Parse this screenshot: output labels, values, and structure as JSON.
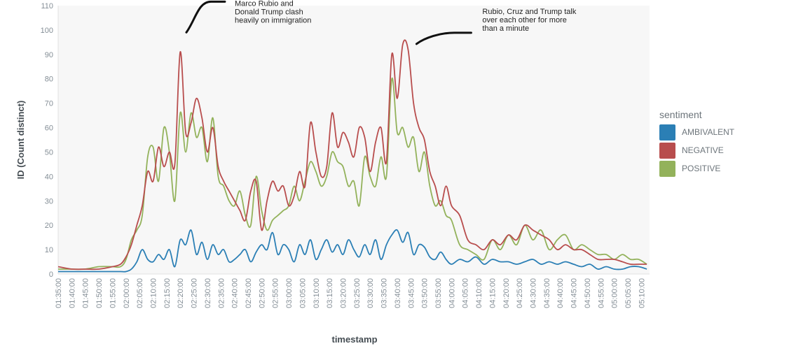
{
  "chart_data": {
    "type": "line",
    "xlabel": "timestamp",
    "ylabel": "ID (Count distinct)",
    "ylim": [
      0,
      110
    ],
    "yticks": [
      0,
      10,
      20,
      30,
      40,
      50,
      60,
      70,
      80,
      90,
      100,
      110
    ],
    "xlim": [
      "01:35:00",
      "05:13:00"
    ],
    "x_tick_labels": [
      "01:35:00",
      "01:40:00",
      "01:45:00",
      "01:50:00",
      "01:55:00",
      "02:00:00",
      "02:05:00",
      "02:10:00",
      "02:15:00",
      "02:20:00",
      "02:25:00",
      "02:30:00",
      "02:35:00",
      "02:40:00",
      "02:45:00",
      "02:50:00",
      "02:55:00",
      "03:00:00",
      "03:05:00",
      "03:10:00",
      "03:15:00",
      "03:20:00",
      "03:25:00",
      "03:30:00",
      "03:35:00",
      "03:40:00",
      "03:45:00",
      "03:50:00",
      "03:55:00",
      "04:00:00",
      "04:05:00",
      "04:10:00",
      "04:15:00",
      "04:20:00",
      "04:25:00",
      "04:30:00",
      "04:35:00",
      "04:40:00",
      "04:45:00",
      "04:50:00",
      "04:55:00",
      "05:00:00",
      "05:05:00",
      "05:10:00"
    ],
    "x": [
      "01:35:00",
      "01:40:00",
      "01:45:00",
      "01:50:00",
      "01:55:00",
      "01:58:00",
      "02:00:00",
      "02:02:00",
      "02:04:00",
      "02:06:00",
      "02:08:00",
      "02:10:00",
      "02:12:00",
      "02:14:00",
      "02:16:00",
      "02:18:00",
      "02:20:00",
      "02:22:00",
      "02:24:00",
      "02:26:00",
      "02:28:00",
      "02:30:00",
      "02:32:00",
      "02:34:00",
      "02:36:00",
      "02:38:00",
      "02:40:00",
      "02:42:00",
      "02:44:00",
      "02:46:00",
      "02:48:00",
      "02:50:00",
      "02:52:00",
      "02:54:00",
      "02:56:00",
      "02:58:00",
      "03:00:00",
      "03:02:00",
      "03:04:00",
      "03:06:00",
      "03:08:00",
      "03:10:00",
      "03:12:00",
      "03:14:00",
      "03:16:00",
      "03:18:00",
      "03:20:00",
      "03:22:00",
      "03:24:00",
      "03:26:00",
      "03:28:00",
      "03:30:00",
      "03:32:00",
      "03:34:00",
      "03:36:00",
      "03:38:00",
      "03:40:00",
      "03:42:00",
      "03:44:00",
      "03:46:00",
      "03:48:00",
      "03:50:00",
      "03:52:00",
      "03:54:00",
      "03:56:00",
      "03:58:00",
      "04:00:00",
      "04:03:00",
      "04:06:00",
      "04:09:00",
      "04:12:00",
      "04:15:00",
      "04:18:00",
      "04:21:00",
      "04:24:00",
      "04:27:00",
      "04:30:00",
      "04:33:00",
      "04:36:00",
      "04:39:00",
      "04:42:00",
      "04:45:00",
      "04:48:00",
      "04:51:00",
      "04:54:00",
      "04:57:00",
      "05:00:00",
      "05:03:00",
      "05:06:00",
      "05:09:00",
      "05:12:00"
    ],
    "series": [
      {
        "name": "AMBIVALENT",
        "color": "#2b7fb5",
        "values": [
          1,
          1,
          1,
          1,
          1,
          1,
          1,
          2,
          5,
          10,
          6,
          5,
          8,
          6,
          10,
          3,
          14,
          12,
          18,
          8,
          13,
          6,
          12,
          8,
          10,
          5,
          6,
          8,
          10,
          5,
          9,
          12,
          10,
          17,
          8,
          12,
          10,
          5,
          12,
          8,
          14,
          6,
          10,
          14,
          9,
          12,
          8,
          14,
          10,
          7,
          12,
          8,
          14,
          6,
          12,
          16,
          18,
          13,
          17,
          8,
          12,
          11,
          7,
          6,
          9,
          6,
          4,
          6,
          5,
          7,
          4,
          6,
          5,
          5,
          4,
          5,
          6,
          4,
          5,
          4,
          5,
          4,
          3,
          4,
          2,
          3,
          2,
          2,
          3,
          3,
          2
        ]
      },
      {
        "name": "NEGATIVE",
        "color": "#b84d4d",
        "values": [
          3,
          2,
          2,
          2,
          3,
          4,
          7,
          12,
          20,
          28,
          42,
          38,
          52,
          44,
          50,
          45,
          91,
          58,
          62,
          72,
          64,
          50,
          60,
          44,
          38,
          34,
          30,
          26,
          22,
          34,
          38,
          18,
          30,
          38,
          34,
          36,
          28,
          32,
          42,
          36,
          62,
          50,
          40,
          44,
          66,
          52,
          58,
          54,
          48,
          60,
          56,
          42,
          54,
          60,
          46,
          90,
          72,
          94,
          92,
          70,
          60,
          55,
          42,
          36,
          28,
          36,
          28,
          24,
          14,
          12,
          10,
          14,
          12,
          16,
          14,
          20,
          18,
          16,
          14,
          10,
          12,
          10,
          10,
          8,
          6,
          6,
          6,
          5,
          4,
          4,
          4
        ]
      },
      {
        "name": "POSITIVE",
        "color": "#93b25b",
        "values": [
          2,
          2,
          2,
          3,
          3,
          3,
          6,
          14,
          18,
          24,
          48,
          52,
          38,
          60,
          50,
          30,
          66,
          50,
          66,
          56,
          60,
          46,
          64,
          40,
          36,
          30,
          28,
          34,
          24,
          20,
          40,
          26,
          18,
          22,
          24,
          26,
          28,
          36,
          30,
          38,
          46,
          42,
          36,
          40,
          50,
          46,
          44,
          36,
          38,
          28,
          48,
          40,
          36,
          48,
          40,
          80,
          58,
          60,
          52,
          56,
          42,
          50,
          36,
          28,
          30,
          24,
          22,
          12,
          10,
          8,
          6,
          14,
          10,
          16,
          12,
          20,
          14,
          18,
          10,
          14,
          16,
          10,
          12,
          10,
          8,
          8,
          6,
          8,
          6,
          6,
          4
        ]
      }
    ],
    "legend_title": "sentiment",
    "legend_position": "right",
    "grid": false,
    "annotations": [
      {
        "lines": [
          "Marco Rubio and",
          "Donald Trump clash",
          "heavily on immigration"
        ],
        "x": "02:22:00",
        "y": 91
      },
      {
        "lines": [
          "Rubio, Cruz and Trump talk",
          "over each other for more",
          "than a minute"
        ],
        "x": "03:44:00",
        "y": 94
      }
    ]
  },
  "legend": {
    "title": "sentiment",
    "items": [
      {
        "label": "AMBIVALENT",
        "color": "#2b7fb5"
      },
      {
        "label": "NEGATIVE",
        "color": "#b84d4d"
      },
      {
        "label": "POSITIVE",
        "color": "#93b25b"
      }
    ]
  }
}
